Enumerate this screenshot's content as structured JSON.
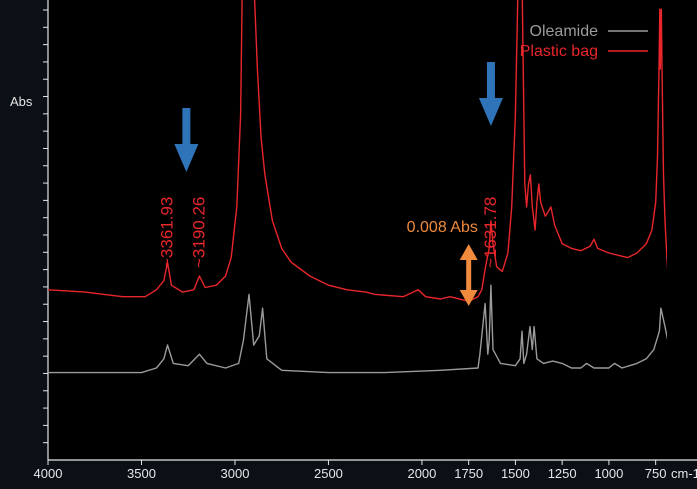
{
  "colors": {
    "background": "#0b0f16",
    "plot_bg": "#000000",
    "axis": "#e6e6e6",
    "oleamide": "#9b9b9b",
    "plastic_bag": "#e8262b",
    "blue_arrow": "#2f74b8",
    "orange_arrow": "#f08a3c",
    "annotation_text": "#e8262b",
    "scale_text": "#f08a3c"
  },
  "chart_data": {
    "type": "line",
    "title": "",
    "xlabel": "cm-1",
    "ylabel": "Abs",
    "x_reversed": true,
    "xlim": [
      4000,
      700
    ],
    "ylim": [
      0,
      1
    ],
    "x_ticks": [
      4000,
      3500,
      3000,
      2500,
      2000,
      1750,
      1500,
      1250,
      1000,
      750
    ],
    "x_tick_labels": [
      "4000",
      "3500",
      "3000",
      "2500",
      "2000",
      "1750",
      "1500",
      "1250",
      "1000",
      "750"
    ],
    "y_tick_count": 26,
    "grid": false,
    "legend": {
      "placement": "top-right",
      "entries": [
        {
          "name": "Oleamide",
          "color": "#9b9b9b"
        },
        {
          "name": "Plastic bag",
          "color": "#e8262b"
        }
      ]
    },
    "series": [
      {
        "name": "Oleamide",
        "color": "#9b9b9b",
        "points": [
          [
            4000,
            0.19
          ],
          [
            3700,
            0.19
          ],
          [
            3500,
            0.19
          ],
          [
            3420,
            0.2
          ],
          [
            3380,
            0.22
          ],
          [
            3361,
            0.25
          ],
          [
            3330,
            0.21
          ],
          [
            3250,
            0.205
          ],
          [
            3190,
            0.23
          ],
          [
            3150,
            0.21
          ],
          [
            3050,
            0.2
          ],
          [
            2980,
            0.21
          ],
          [
            2955,
            0.26
          ],
          [
            2925,
            0.36
          ],
          [
            2900,
            0.25
          ],
          [
            2870,
            0.27
          ],
          [
            2852,
            0.33
          ],
          [
            2830,
            0.22
          ],
          [
            2750,
            0.195
          ],
          [
            2500,
            0.19
          ],
          [
            2200,
            0.19
          ],
          [
            1900,
            0.195
          ],
          [
            1700,
            0.2
          ],
          [
            1690,
            0.23
          ],
          [
            1662,
            0.34
          ],
          [
            1648,
            0.23
          ],
          [
            1640,
            0.26
          ],
          [
            1631,
            0.38
          ],
          [
            1620,
            0.24
          ],
          [
            1580,
            0.21
          ],
          [
            1500,
            0.205
          ],
          [
            1475,
            0.22
          ],
          [
            1465,
            0.28
          ],
          [
            1455,
            0.21
          ],
          [
            1440,
            0.23
          ],
          [
            1422,
            0.29
          ],
          [
            1410,
            0.24
          ],
          [
            1400,
            0.29
          ],
          [
            1385,
            0.22
          ],
          [
            1350,
            0.21
          ],
          [
            1300,
            0.215
          ],
          [
            1250,
            0.21
          ],
          [
            1200,
            0.2
          ],
          [
            1150,
            0.2
          ],
          [
            1120,
            0.21
          ],
          [
            1080,
            0.2
          ],
          [
            1000,
            0.2
          ],
          [
            970,
            0.21
          ],
          [
            930,
            0.2
          ],
          [
            890,
            0.205
          ],
          [
            850,
            0.21
          ],
          [
            800,
            0.22
          ],
          [
            760,
            0.24
          ],
          [
            730,
            0.28
          ],
          [
            722,
            0.33
          ],
          [
            700,
            0.29
          ],
          [
            680,
            0.25
          ],
          [
            670,
            0.27
          ],
          [
            655,
            0.24
          ]
        ]
      },
      {
        "name": "Plastic bag",
        "color": "#e8262b",
        "points": [
          [
            4000,
            0.37
          ],
          [
            3800,
            0.365
          ],
          [
            3700,
            0.36
          ],
          [
            3600,
            0.355
          ],
          [
            3480,
            0.355
          ],
          [
            3420,
            0.37
          ],
          [
            3380,
            0.39
          ],
          [
            3361,
            0.43
          ],
          [
            3340,
            0.38
          ],
          [
            3280,
            0.365
          ],
          [
            3220,
            0.37
          ],
          [
            3190,
            0.4
          ],
          [
            3160,
            0.375
          ],
          [
            3100,
            0.38
          ],
          [
            3050,
            0.4
          ],
          [
            3020,
            0.44
          ],
          [
            2990,
            0.55
          ],
          [
            2970,
            0.75
          ],
          [
            2960,
            1.05
          ],
          [
            2900,
            1.05
          ],
          [
            2880,
            0.85
          ],
          [
            2860,
            0.7
          ],
          [
            2840,
            0.62
          ],
          [
            2800,
            0.52
          ],
          [
            2750,
            0.46
          ],
          [
            2700,
            0.43
          ],
          [
            2600,
            0.4
          ],
          [
            2500,
            0.38
          ],
          [
            2400,
            0.37
          ],
          [
            2300,
            0.365
          ],
          [
            2250,
            0.36
          ],
          [
            2100,
            0.355
          ],
          [
            2020,
            0.37
          ],
          [
            1980,
            0.355
          ],
          [
            1900,
            0.35
          ],
          [
            1850,
            0.355
          ],
          [
            1750,
            0.345
          ],
          [
            1700,
            0.355
          ],
          [
            1680,
            0.37
          ],
          [
            1660,
            0.42
          ],
          [
            1640,
            0.46
          ],
          [
            1631,
            0.52
          ],
          [
            1620,
            0.47
          ],
          [
            1600,
            0.42
          ],
          [
            1570,
            0.41
          ],
          [
            1540,
            0.45
          ],
          [
            1520,
            0.55
          ],
          [
            1500,
            0.75
          ],
          [
            1485,
            1.05
          ],
          [
            1465,
            1.05
          ],
          [
            1450,
            0.6
          ],
          [
            1440,
            0.55
          ],
          [
            1430,
            0.6
          ],
          [
            1420,
            0.62
          ],
          [
            1410,
            0.55
          ],
          [
            1395,
            0.5
          ],
          [
            1385,
            0.56
          ],
          [
            1375,
            0.6
          ],
          [
            1365,
            0.56
          ],
          [
            1340,
            0.53
          ],
          [
            1310,
            0.55
          ],
          [
            1290,
            0.51
          ],
          [
            1250,
            0.47
          ],
          [
            1200,
            0.46
          ],
          [
            1150,
            0.455
          ],
          [
            1100,
            0.465
          ],
          [
            1080,
            0.48
          ],
          [
            1060,
            0.46
          ],
          [
            1000,
            0.45
          ],
          [
            950,
            0.445
          ],
          [
            900,
            0.44
          ],
          [
            850,
            0.45
          ],
          [
            800,
            0.47
          ],
          [
            770,
            0.5
          ],
          [
            750,
            0.56
          ],
          [
            740,
            0.66
          ],
          [
            732,
            0.85
          ],
          [
            728,
            0.98
          ],
          [
            725,
            0.85
          ],
          [
            720,
            0.98
          ],
          [
            715,
            0.82
          ],
          [
            708,
            0.62
          ],
          [
            700,
            0.52
          ],
          [
            690,
            0.44
          ],
          [
            680,
            0.38
          ],
          [
            675,
            0.47
          ],
          [
            670,
            0.36
          ],
          [
            665,
            0.48
          ],
          [
            660,
            0.34
          ],
          [
            655,
            0.46
          ]
        ]
      }
    ],
    "annotations": [
      {
        "type": "peak-label",
        "text": "3361.93",
        "x": 3361.93,
        "series": "Plastic bag"
      },
      {
        "type": "peak-label",
        "text": "3190.26",
        "x": 3190.26,
        "series": "Plastic bag"
      },
      {
        "type": "peak-label",
        "text": "1631.78",
        "x": 1631.78,
        "series": "Plastic bag"
      },
      {
        "type": "arrow-down",
        "x": 3260,
        "color": "#2f74b8"
      },
      {
        "type": "arrow-down",
        "x": 1631,
        "color": "#2f74b8"
      },
      {
        "type": "scale-bar",
        "text": "0.008 Abs",
        "x": 1750,
        "color": "#f08a3c"
      }
    ]
  }
}
